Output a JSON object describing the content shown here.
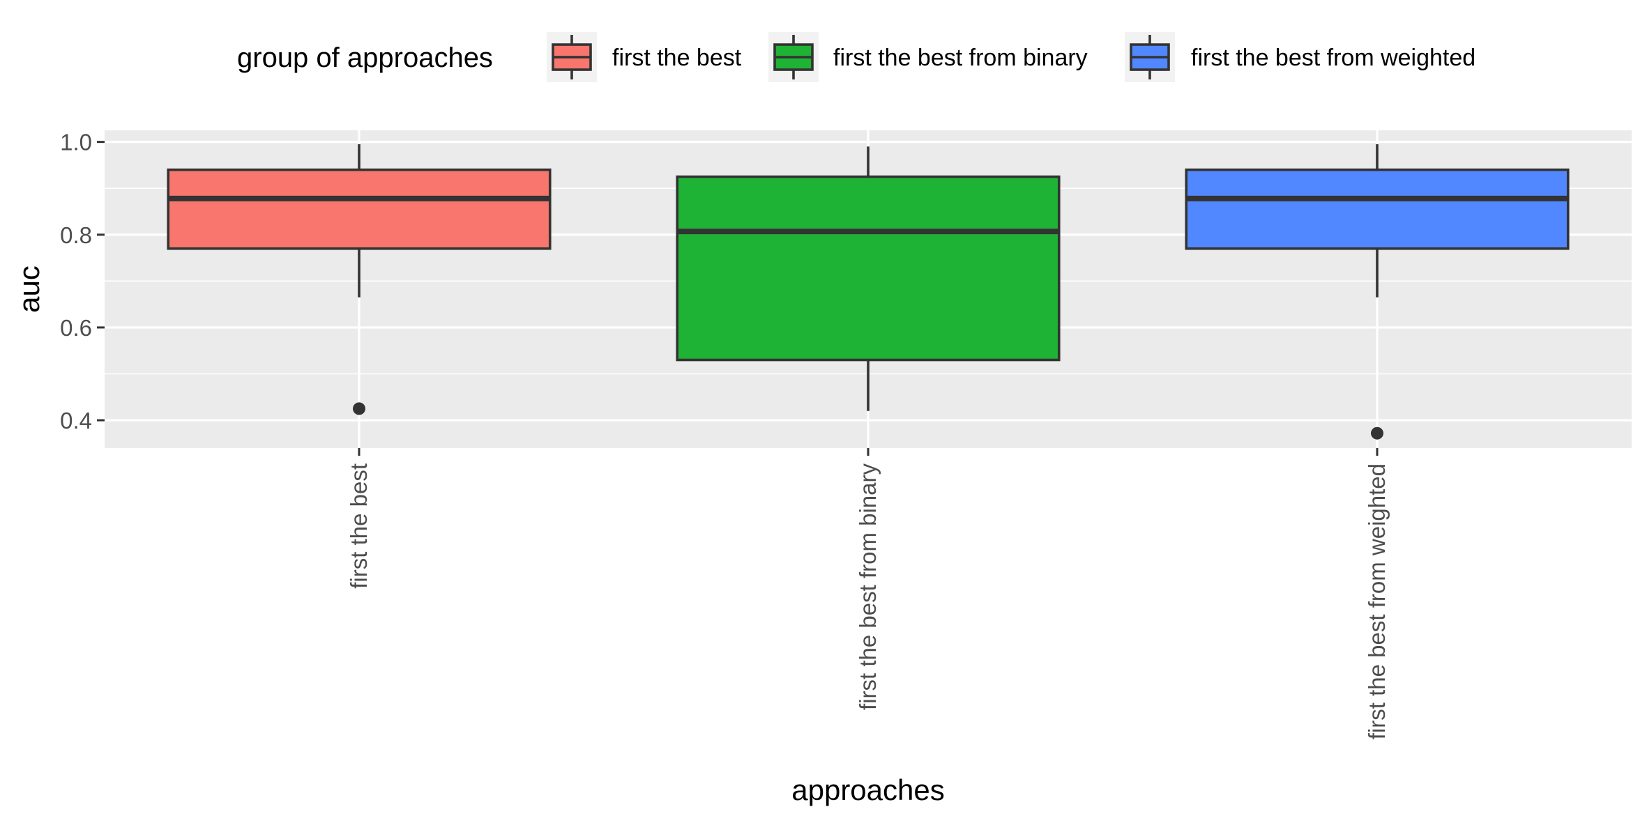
{
  "chart_data": {
    "type": "boxplot",
    "xlabel": "approaches",
    "ylabel": "auc",
    "ylim": [
      0.34,
      1.025
    ],
    "yticks": [
      "0.4",
      "0.6",
      "0.8",
      "1.0"
    ],
    "grid": true,
    "legend": {
      "title": "group of approaches",
      "position": "top",
      "entries": [
        "first the best",
        "first the best from binary",
        "first the best from weighted"
      ]
    },
    "categories": [
      "first the best",
      "first the best from binary",
      "first the best from weighted"
    ],
    "series": [
      {
        "name": "first the best",
        "color": "#F8766D",
        "whisker_low": 0.665,
        "q1": 0.77,
        "median": 0.878,
        "q3": 0.94,
        "whisker_high": 0.995,
        "outliers": [
          0.425
        ]
      },
      {
        "name": "first the best from binary",
        "color": "#1EB334",
        "whisker_low": 0.42,
        "q1": 0.53,
        "median": 0.807,
        "q3": 0.925,
        "whisker_high": 0.99,
        "outliers": []
      },
      {
        "name": "first the best from weighted",
        "color": "#5288FF",
        "whisker_low": 0.665,
        "q1": 0.77,
        "median": 0.878,
        "q3": 0.94,
        "whisker_high": 0.995,
        "outliers": [
          0.372
        ]
      }
    ]
  }
}
